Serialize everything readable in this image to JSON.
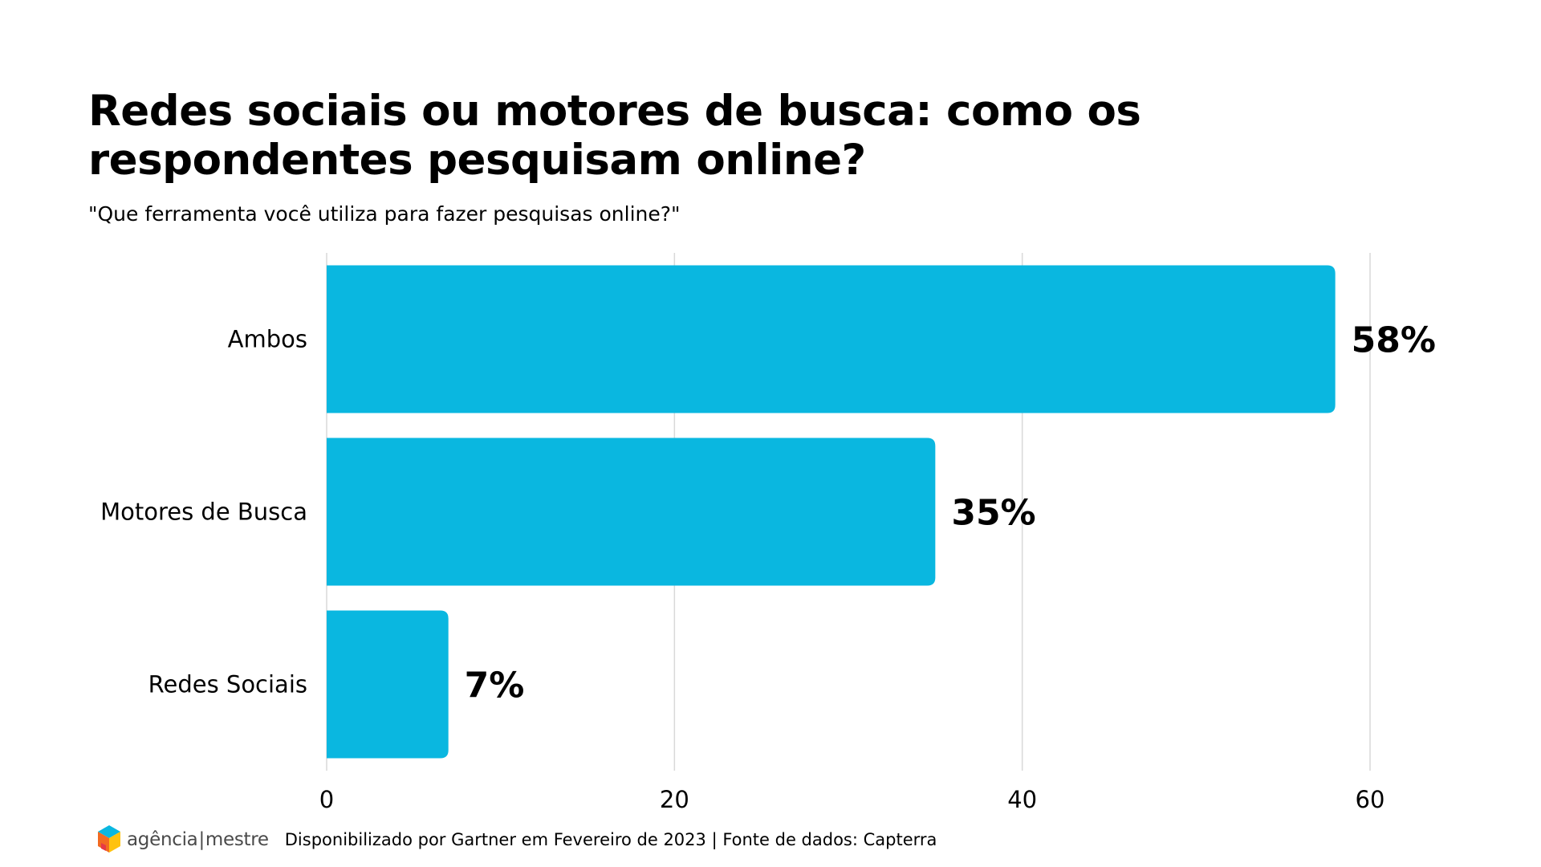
{
  "title": "Redes sociais ou motores de busca: como os respondentes pesquisam online?",
  "subtitle": "\"Que ferramenta você utiliza para fazer pesquisas online?\"",
  "colors": {
    "bar": "#0AB7E0",
    "grid": "#D9D9D9",
    "text": "#000000"
  },
  "chart_data": {
    "type": "bar",
    "orientation": "horizontal",
    "title": "Redes sociais ou motores de busca: como os respondentes pesquisam online?",
    "subtitle": "\"Que ferramenta você utiliza para fazer pesquisas online?\"",
    "categories": [
      "Ambos",
      "Motores de Busca",
      "Redes Sociais"
    ],
    "values": [
      58,
      35,
      7
    ],
    "data_labels": [
      "58%",
      "35%",
      "7%"
    ],
    "xlim": [
      0,
      60
    ],
    "x_ticks": [
      0,
      20,
      40,
      60
    ],
    "x_tick_labels": [
      "0",
      "20",
      "40",
      "60"
    ],
    "xlabel": "",
    "ylabel": "",
    "grid": true,
    "legend": "none"
  },
  "footer": {
    "logo_name": "agência",
    "logo_sep": "|",
    "logo_suffix": "mestre",
    "logo_icon": "cube-logo-icon",
    "source": "Disponibilizado por Gartner em Fevereiro de 2023 | Fonte de dados: Capterra"
  }
}
